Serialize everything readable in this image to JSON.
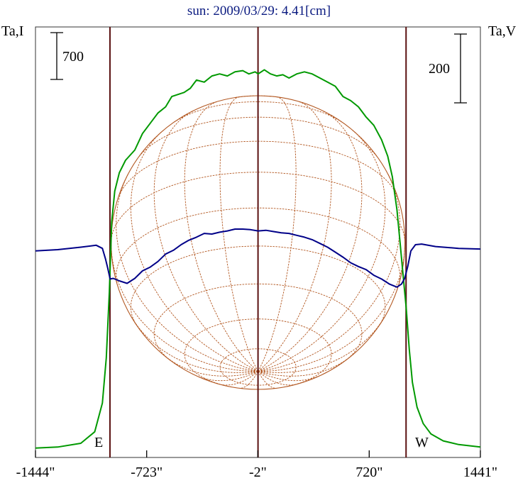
{
  "chart_data": {
    "type": "line",
    "title": "sun: 2009/03/29: 4.41[cm]",
    "y_left_label": "Ta,I",
    "y_right_label": "Ta,V",
    "scale_left": "700",
    "scale_right": "200",
    "limb_east_label": "E",
    "limb_west_label": "W",
    "x_ticks": [
      {
        "value": -1444,
        "label": "-1444\""
      },
      {
        "value": -723,
        "label": "-723\""
      },
      {
        "value": -2,
        "label": "-2\""
      },
      {
        "value": 720,
        "label": "720\""
      },
      {
        "value": 1441,
        "label": "1441\""
      }
    ],
    "xlim": [
      -1444,
      1441
    ],
    "limbs": [
      -961,
      959
    ],
    "series": [
      {
        "key": "I",
        "color": "#009900",
        "x": [
          -1444,
          -1300,
          -1150,
          -1060,
          -1010,
          -985,
          -965,
          -950,
          -930,
          -900,
          -860,
          -800,
          -750,
          -700,
          -650,
          -600,
          -560,
          -520,
          -480,
          -440,
          -400,
          -350,
          -300,
          -250,
          -200,
          -150,
          -100,
          -60,
          -20,
          0,
          40,
          80,
          120,
          160,
          200,
          250,
          300,
          350,
          400,
          450,
          500,
          550,
          600,
          650,
          700,
          750,
          800,
          840,
          870,
          900,
          920,
          940,
          960,
          980,
          1000,
          1030,
          1070,
          1120,
          1200,
          1300,
          1441
        ],
        "y": [
          0.05,
          0.3,
          1.2,
          4.0,
          11.0,
          22.0,
          38.0,
          55.0,
          62.5,
          67.0,
          70.0,
          72.5,
          76.5,
          79.0,
          81.5,
          83.0,
          85.5,
          86.0,
          86.5,
          87.5,
          89.5,
          89.0,
          90.5,
          91.0,
          90.5,
          91.5,
          91.8,
          91.0,
          91.5,
          91.0,
          92.0,
          91.0,
          90.5,
          90.8,
          90.0,
          91.0,
          91.5,
          91.0,
          90.0,
          89.0,
          88.0,
          85.5,
          84.5,
          83.0,
          80.5,
          78.5,
          75.0,
          71.0,
          66.0,
          58.0,
          50.0,
          42.0,
          34.0,
          24.0,
          16.0,
          10.0,
          6.0,
          3.5,
          1.8,
          0.9,
          0.3
        ]
      },
      {
        "key": "V",
        "color": "#000088",
        "x": [
          -1444,
          -1300,
          -1150,
          -1050,
          -1010,
          -990,
          -975,
          -960,
          -940,
          -900,
          -850,
          -800,
          -750,
          -700,
          -650,
          -600,
          -550,
          -500,
          -450,
          -400,
          -350,
          -300,
          -250,
          -200,
          -150,
          -100,
          -50,
          0,
          50,
          100,
          150,
          200,
          250,
          300,
          350,
          400,
          450,
          500,
          550,
          600,
          650,
          700,
          750,
          800,
          850,
          900,
          930,
          950,
          970,
          990,
          1020,
          1060,
          1150,
          1300,
          1441
        ],
        "y": [
          26.8,
          27.0,
          27.4,
          27.7,
          27.2,
          25.5,
          24.0,
          22.3,
          22.4,
          22.0,
          21.6,
          22.4,
          23.6,
          24.2,
          25.1,
          26.3,
          26.9,
          27.8,
          28.5,
          29.0,
          29.6,
          29.5,
          29.8,
          30.0,
          30.3,
          30.3,
          30.2,
          30.0,
          30.1,
          29.9,
          29.7,
          29.6,
          29.3,
          29.0,
          28.6,
          28.0,
          27.4,
          26.6,
          25.8,
          24.9,
          24.3,
          23.8,
          22.9,
          22.3,
          21.5,
          21.0,
          21.5,
          22.4,
          24.3,
          26.8,
          27.8,
          27.9,
          27.5,
          27.2,
          27.1
        ]
      }
    ]
  }
}
